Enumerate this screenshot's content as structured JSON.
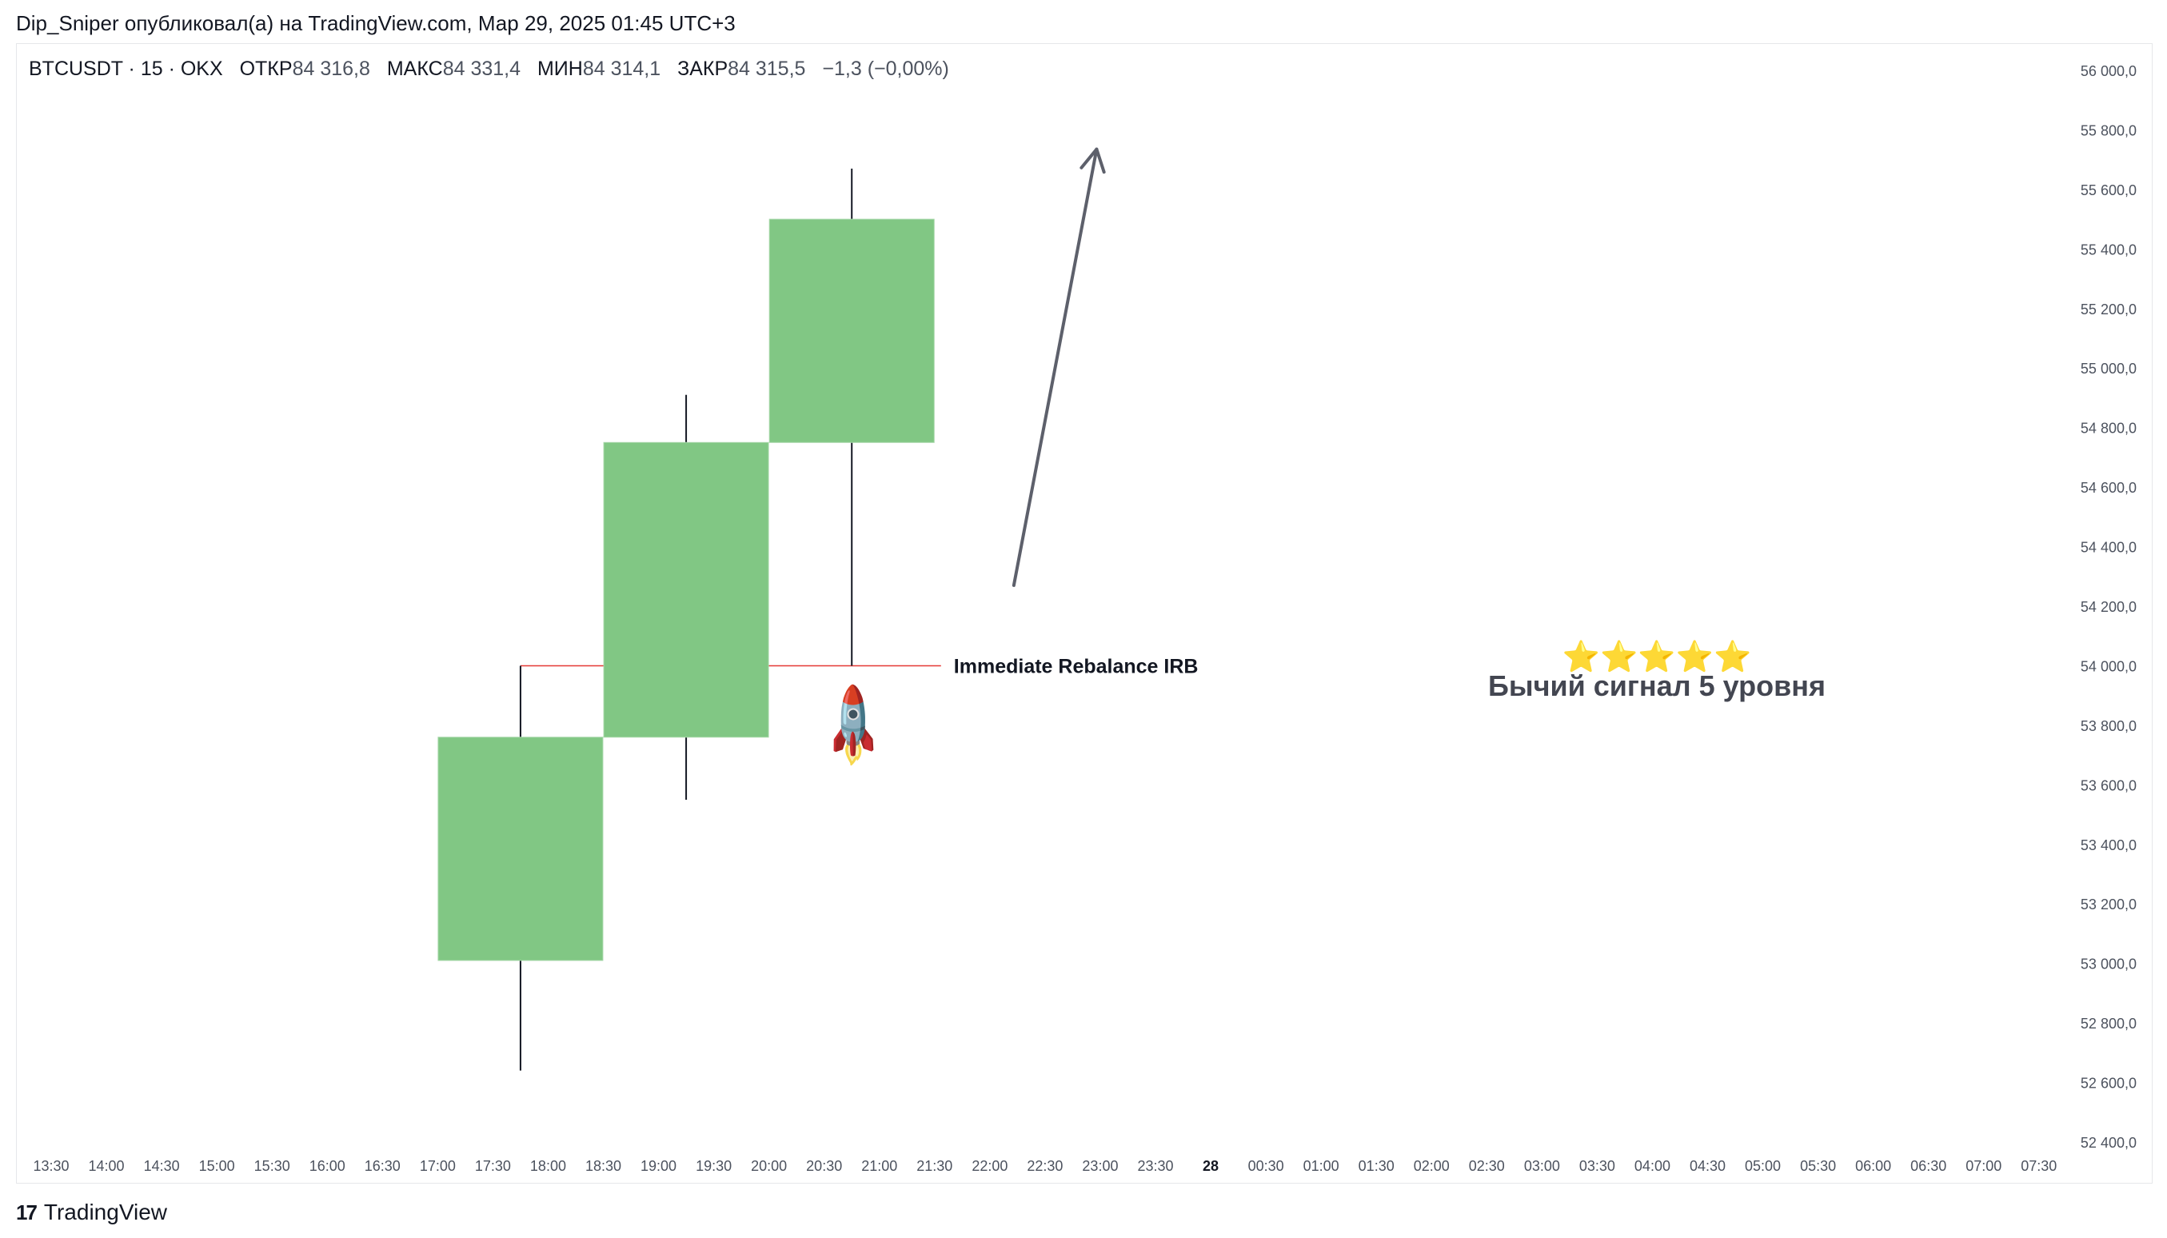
{
  "header": {
    "publisher_line": "Dip_Sniper опубликовал(а) на TradingView.com, Мар 29, 2025 01:45 UTC+3"
  },
  "legend": {
    "symbol": "BTCUSDT · 15 · OKX",
    "open_label": "ОТКР",
    "open_value": "84 316,8",
    "high_label": "МАКС",
    "high_value": "84 331,4",
    "low_label": "МИН",
    "low_value": "84 314,1",
    "close_label": "ЗАКР",
    "close_value": "84 315,5",
    "change": "−1,3 (−0,00%)"
  },
  "annotations": {
    "irb_label": "Immediate Rebalance IRB",
    "stars": "⭐⭐⭐⭐⭐",
    "signal_text": "Бычий сигнал 5 уровня",
    "rocket": "🚀",
    "rocket_icon": "rocket-icon",
    "arrow_icon": "arrow-up-right-icon"
  },
  "colors": {
    "candle_up": "#81c784",
    "wick": "#131722",
    "irb_line": "#e53935",
    "arrow": "#5d606b",
    "axis_text": "#4c525e"
  },
  "footer": {
    "brand": "TradingView",
    "logo_icon": "tradingview-logo-icon"
  },
  "chart_data": {
    "type": "candlestick",
    "title": "",
    "x_ticks": [
      "13:30",
      "14:00",
      "14:30",
      "15:00",
      "15:30",
      "16:00",
      "16:30",
      "17:00",
      "17:30",
      "18:00",
      "18:30",
      "19:00",
      "19:30",
      "20:00",
      "20:30",
      "21:00",
      "21:30",
      "22:00",
      "22:30",
      "23:00",
      "23:30",
      "28",
      "00:30",
      "01:00",
      "01:30",
      "02:00",
      "02:30",
      "03:00",
      "03:30",
      "04:00",
      "04:30",
      "05:00",
      "05:30",
      "06:00",
      "06:30",
      "07:00",
      "07:30"
    ],
    "x_bold_ticks": [
      "28"
    ],
    "y_ticks": [
      "56 000,0",
      "55 800,0",
      "55 600,0",
      "55 400,0",
      "55 200,0",
      "55 000,0",
      "54 800,0",
      "54 600,0",
      "54 400,0",
      "54 200,0",
      "54 000,0",
      "53 800,0",
      "53 600,0",
      "53 400,0",
      "53 200,0",
      "53 000,0",
      "52 800,0",
      "52 600,0",
      "52 400,0"
    ],
    "y_tick_values": [
      56000,
      55800,
      55600,
      55400,
      55200,
      55000,
      54800,
      54600,
      54400,
      54200,
      54000,
      53800,
      53600,
      53400,
      53200,
      53000,
      52800,
      52600,
      52400
    ],
    "ylim": [
      52400,
      56000
    ],
    "candles": [
      {
        "time": "17:45",
        "open": 53010,
        "high": 54000,
        "low": 52640,
        "close": 53760
      },
      {
        "time": "19:15",
        "open": 53760,
        "high": 54910,
        "low": 53550,
        "close": 54750
      },
      {
        "time": "20:45",
        "open": 54750,
        "high": 55670,
        "low": 54000,
        "close": 55500
      }
    ],
    "irb_level": 54000,
    "irb_from": "17:45",
    "irb_to": "21:30",
    "arrow": {
      "from": {
        "time": "22:00",
        "price": 54270
      },
      "to": {
        "time": "22:45",
        "price": 55660
      }
    }
  }
}
